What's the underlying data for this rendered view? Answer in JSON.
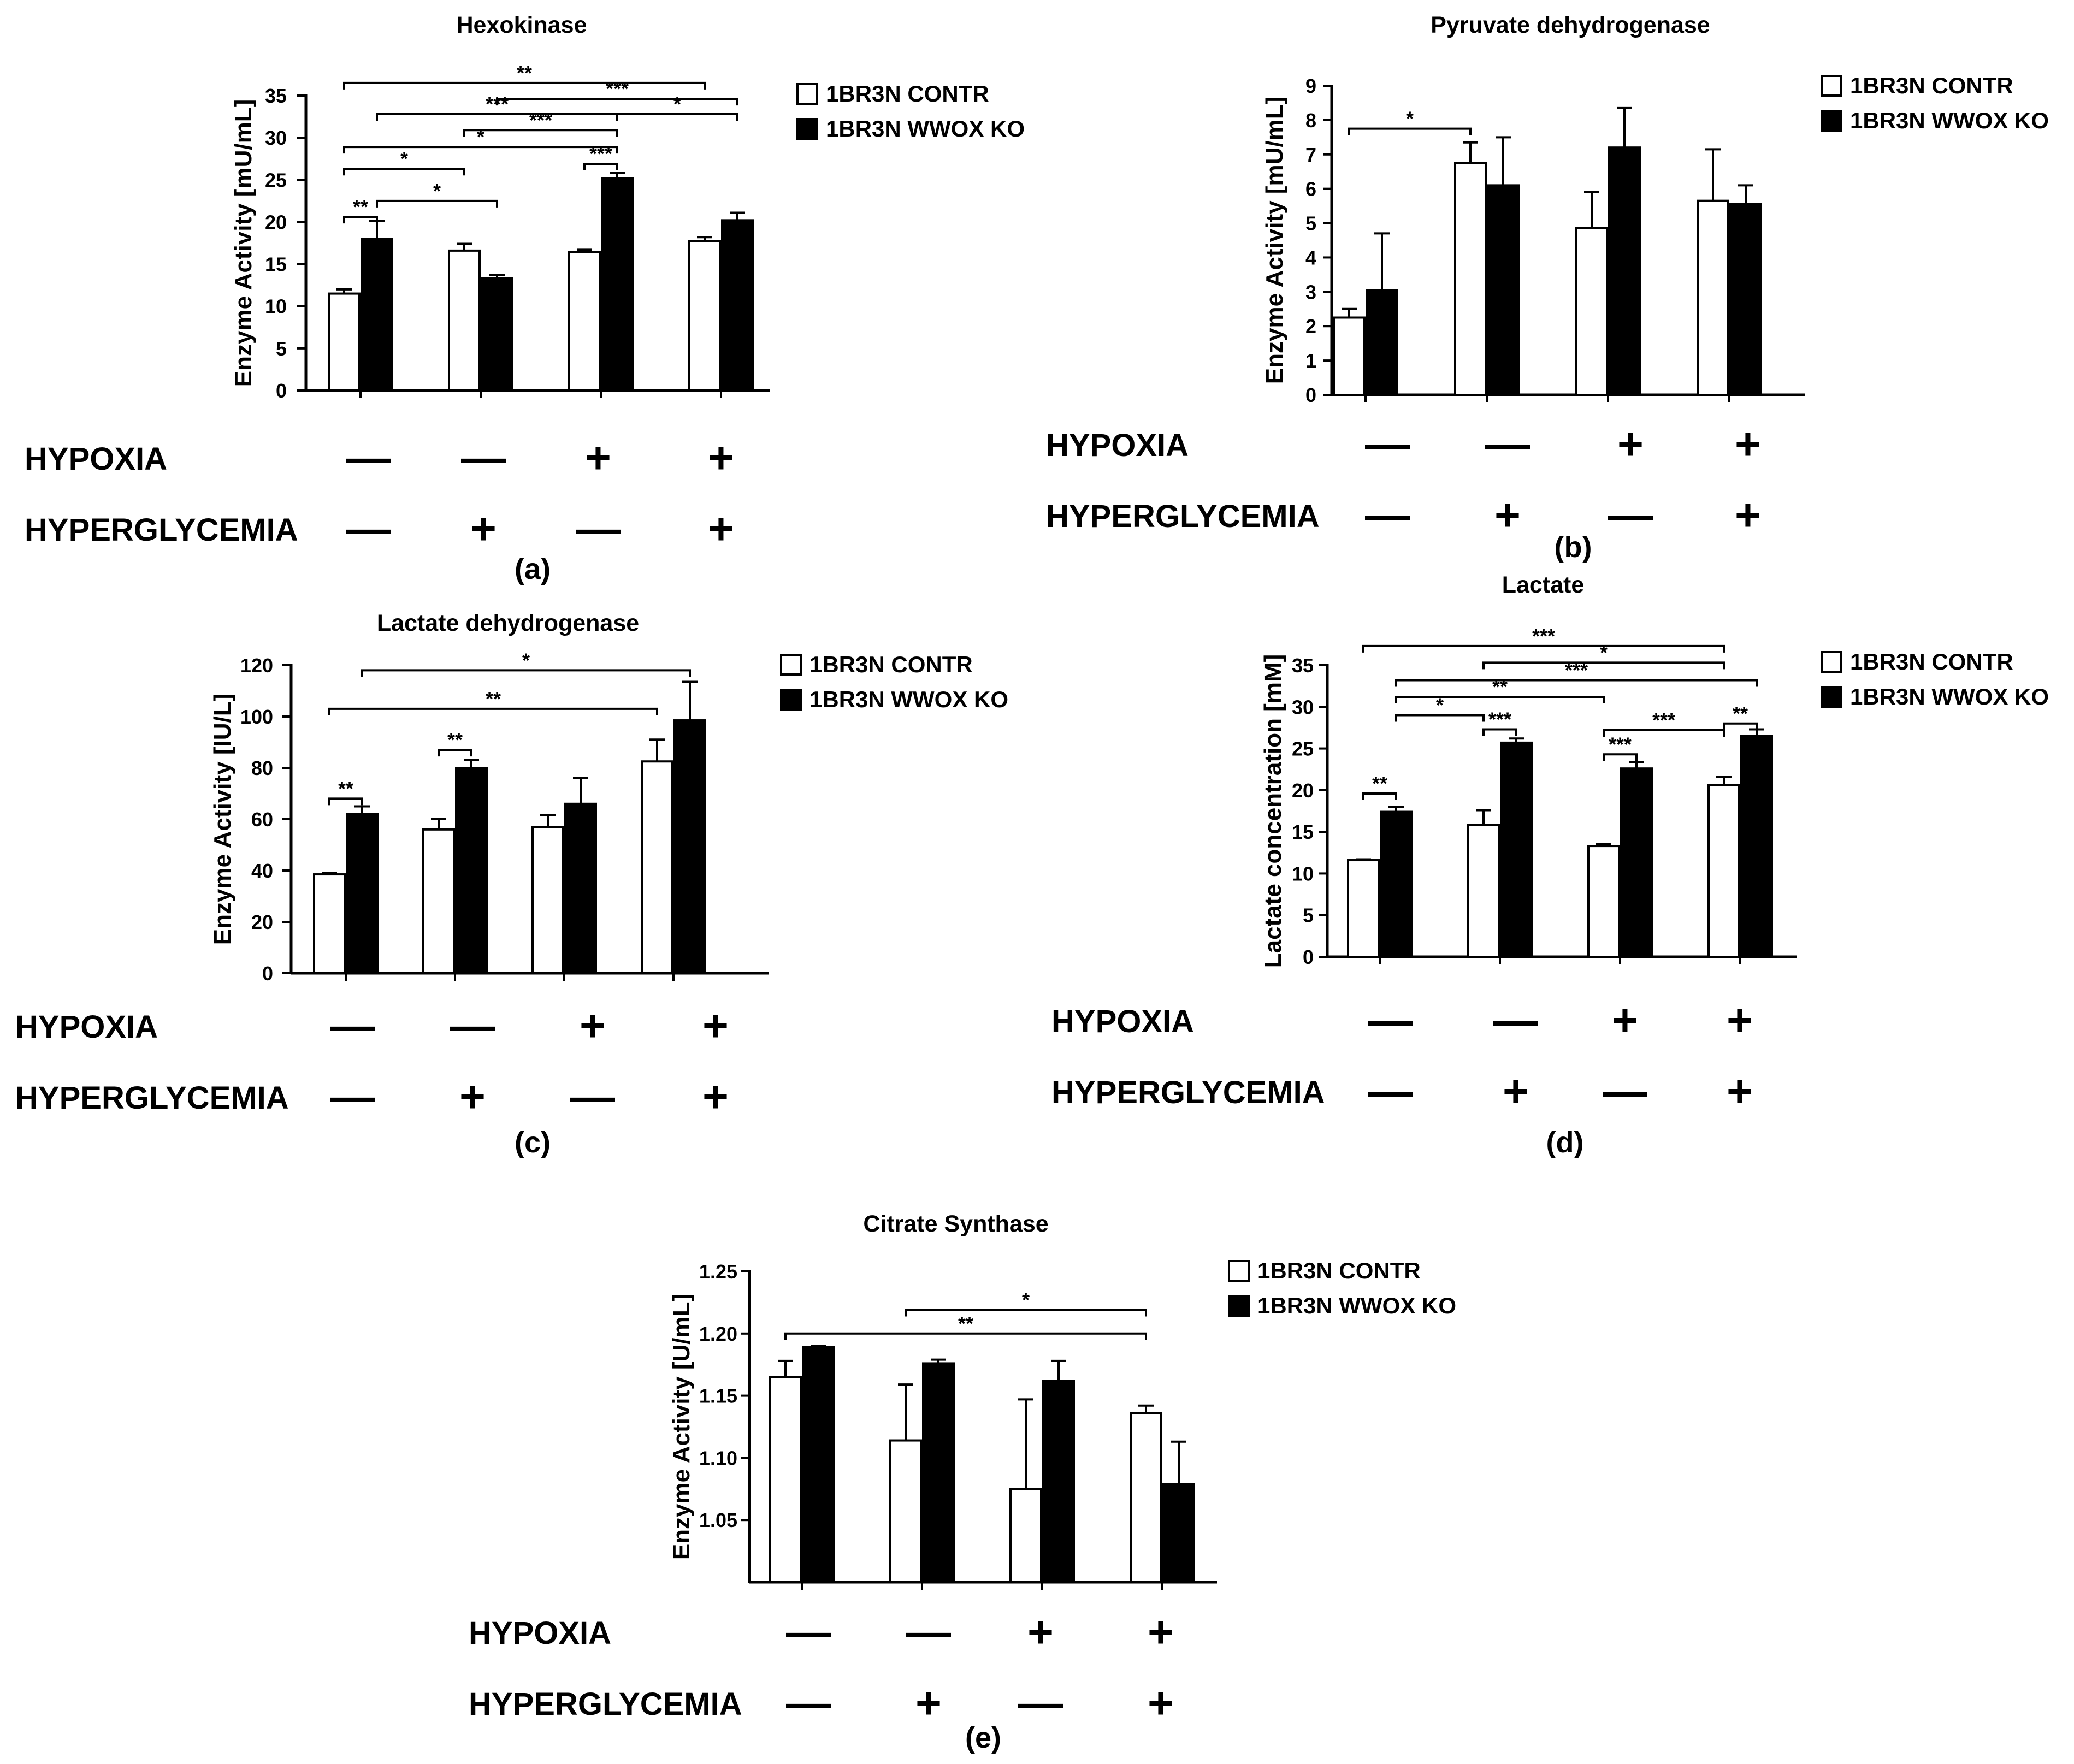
{
  "figure": {
    "legend": [
      "1BR3N CONTR",
      "1BR3N WWOX KO"
    ],
    "condition_labels": [
      "HYPOXIA",
      "HYPERGLYCEMIA"
    ],
    "hypoxia_signs": [
      "—",
      "—",
      "+",
      "+"
    ],
    "hyperglycemia_signs": [
      "—",
      "+",
      "—",
      "+"
    ],
    "colors": {
      "contr": "#ffffff",
      "ko": "#000000",
      "stroke": "#000000"
    }
  },
  "chart_data": [
    {
      "type": "bar",
      "panel": "(a)",
      "title": "Hexokinase",
      "ylabel": "Enzyme Activity [mU/mL]",
      "ylim": [
        0,
        35
      ],
      "yticks": [
        0,
        5,
        10,
        15,
        20,
        25,
        30,
        35
      ],
      "ytick_labels": [
        "0",
        "5",
        "10",
        "15",
        "20",
        "25",
        "30",
        "35"
      ],
      "categories": [
        "HYPOXIA — / HYPERGLYCEMIA —",
        "HYPOXIA — / HYPERGLYCEMIA +",
        "HYPOXIA + / HYPERGLYCEMIA —",
        "HYPOXIA + / HYPERGLYCEMIA +"
      ],
      "series": [
        {
          "name": "1BR3N CONTR",
          "values": [
            11.5,
            16.6,
            16.4,
            17.7
          ],
          "errors": [
            0.5,
            0.8,
            0.3,
            0.5
          ]
        },
        {
          "name": "1BR3N WWOX KO",
          "values": [
            18.0,
            13.3,
            25.2,
            20.2
          ],
          "errors": [
            2.1,
            0.4,
            0.6,
            0.9
          ]
        }
      ],
      "significance": [
        {
          "from": [
            0,
            0
          ],
          "to": [
            3,
            0
          ],
          "label": "**",
          "y": 36.5
        },
        {
          "from": [
            1,
            1
          ],
          "to": [
            3,
            1
          ],
          "label": "***",
          "y": 34.6
        },
        {
          "from": [
            0,
            1
          ],
          "to": [
            2,
            1
          ],
          "label": "***",
          "y": 32.8
        },
        {
          "from": [
            2,
            1
          ],
          "to": [
            3,
            1
          ],
          "label": "*",
          "y": 32.8
        },
        {
          "from": [
            1,
            0
          ],
          "to": [
            2,
            1
          ],
          "label": "***",
          "y": 30.9
        },
        {
          "from": [
            0,
            0
          ],
          "to": [
            2,
            1
          ],
          "label": "*",
          "y": 28.9
        },
        {
          "from": [
            2,
            0
          ],
          "to": [
            2,
            1
          ],
          "label": "***",
          "y": 26.9
        },
        {
          "from": [
            0,
            0
          ],
          "to": [
            1,
            0
          ],
          "label": "*",
          "y": 26.3
        },
        {
          "from": [
            0,
            1
          ],
          "to": [
            1,
            1
          ],
          "label": "*",
          "y": 22.5
        },
        {
          "from": [
            0,
            0
          ],
          "to": [
            0,
            1
          ],
          "label": "**",
          "y": 20.6
        }
      ]
    },
    {
      "type": "bar",
      "panel": "(b)",
      "title": "Pyruvate dehydrogenase",
      "ylabel": "Enzyme Activity [mU/mL]",
      "ylim": [
        0,
        9
      ],
      "yticks": [
        0,
        1,
        2,
        3,
        4,
        5,
        6,
        7,
        8,
        9
      ],
      "ytick_labels": [
        "0",
        "1",
        "2",
        "3",
        "4",
        "5",
        "6",
        "7",
        "8",
        "9"
      ],
      "categories": [
        "HYPOXIA — / HYPERGLYCEMIA —",
        "HYPOXIA — / HYPERGLYCEMIA +",
        "HYPOXIA + / HYPERGLYCEMIA —",
        "HYPOXIA + / HYPERGLYCEMIA +"
      ],
      "series": [
        {
          "name": "1BR3N CONTR",
          "values": [
            2.25,
            6.75,
            4.85,
            5.65
          ],
          "errors": [
            0.25,
            0.6,
            1.05,
            1.5
          ]
        },
        {
          "name": "1BR3N WWOX KO",
          "values": [
            3.05,
            6.1,
            7.2,
            5.55
          ],
          "errors": [
            1.65,
            1.4,
            1.15,
            0.55
          ]
        }
      ],
      "significance": [
        {
          "from": [
            0,
            0
          ],
          "to": [
            1,
            0
          ],
          "label": "*",
          "y": 7.75
        }
      ]
    },
    {
      "type": "bar",
      "panel": "(c)",
      "title": "Lactate dehydrogenase",
      "ylabel": "Enzyme Activity [IU/L]",
      "ylim": [
        0,
        120
      ],
      "yticks": [
        0,
        20,
        40,
        60,
        80,
        100,
        120
      ],
      "ytick_labels": [
        "0",
        "20",
        "40",
        "60",
        "80",
        "100",
        "120"
      ],
      "categories": [
        "HYPOXIA — / HYPERGLYCEMIA —",
        "HYPOXIA — / HYPERGLYCEMIA +",
        "HYPOXIA + / HYPERGLYCEMIA —",
        "HYPOXIA + / HYPERGLYCEMIA +"
      ],
      "series": [
        {
          "name": "1BR3N CONTR",
          "values": [
            38.5,
            56,
            57,
            82.5
          ],
          "errors": [
            0.5,
            4,
            4.5,
            8.5
          ]
        },
        {
          "name": "1BR3N WWOX KO",
          "values": [
            62,
            80,
            66,
            98.5
          ],
          "errors": [
            3,
            3,
            10,
            15
          ]
        }
      ],
      "significance": [
        {
          "from": [
            0,
            1
          ],
          "to": [
            3,
            1
          ],
          "label": "*",
          "y": 118
        },
        {
          "from": [
            0,
            0
          ],
          "to": [
            3,
            0
          ],
          "label": "**",
          "y": 103
        },
        {
          "from": [
            1,
            0
          ],
          "to": [
            1,
            1
          ],
          "label": "**",
          "y": 87
        },
        {
          "from": [
            0,
            0
          ],
          "to": [
            0,
            1
          ],
          "label": "**",
          "y": 68
        }
      ]
    },
    {
      "type": "bar",
      "panel": "(d)",
      "title": "Lactate",
      "ylabel": "Lactate concentration [mM]",
      "ylim": [
        0,
        35
      ],
      "yticks": [
        0,
        5,
        10,
        15,
        20,
        25,
        30,
        35
      ],
      "ytick_labels": [
        "0",
        "5",
        "10",
        "15",
        "20",
        "25",
        "30",
        "35"
      ],
      "categories": [
        "HYPOXIA — / HYPERGLYCEMIA —",
        "HYPOXIA — / HYPERGLYCEMIA +",
        "HYPOXIA + / HYPERGLYCEMIA —",
        "HYPOXIA + / HYPERGLYCEMIA +"
      ],
      "series": [
        {
          "name": "1BR3N CONTR",
          "values": [
            11.6,
            15.8,
            13.3,
            20.6
          ],
          "errors": [
            0.1,
            1.8,
            0.2,
            1.0
          ]
        },
        {
          "name": "1BR3N WWOX KO",
          "values": [
            17.4,
            25.7,
            22.6,
            26.5
          ],
          "errors": [
            0.6,
            0.5,
            0.8,
            0.8
          ]
        }
      ],
      "significance": [
        {
          "from": [
            0,
            0
          ],
          "to": [
            3,
            0
          ],
          "label": "***",
          "y": 37.3
        },
        {
          "from": [
            1,
            0
          ],
          "to": [
            3,
            0
          ],
          "label": "*",
          "y": 35.3
        },
        {
          "from": [
            0,
            1
          ],
          "to": [
            3,
            1
          ],
          "label": "***",
          "y": 33.2
        },
        {
          "from": [
            0,
            1
          ],
          "to": [
            2,
            0
          ],
          "label": "**",
          "y": 31.2
        },
        {
          "from": [
            0,
            1
          ],
          "to": [
            1,
            0
          ],
          "label": "*",
          "y": 29.0
        },
        {
          "from": [
            1,
            0
          ],
          "to": [
            1,
            1
          ],
          "label": "***",
          "y": 27.3
        },
        {
          "from": [
            2,
            0
          ],
          "to": [
            3,
            0
          ],
          "label": "***",
          "y": 27.2
        },
        {
          "from": [
            3,
            0
          ],
          "to": [
            3,
            1
          ],
          "label": "**",
          "y": 28.0
        },
        {
          "from": [
            2,
            0
          ],
          "to": [
            2,
            1
          ],
          "label": "***",
          "y": 24.3
        },
        {
          "from": [
            0,
            0
          ],
          "to": [
            0,
            1
          ],
          "label": "**",
          "y": 19.6
        }
      ]
    },
    {
      "type": "bar",
      "panel": "(e)",
      "title": "Citrate Synthase",
      "ylabel": "Enzyme Activity [U/mL]",
      "ylim": [
        1.0,
        1.25
      ],
      "yticks": [
        1.05,
        1.1,
        1.15,
        1.2,
        1.25
      ],
      "ytick_labels": [
        "1.05",
        "1.10",
        "1.15",
        "1.20",
        "1.25"
      ],
      "categories": [
        "HYPOXIA — / HYPERGLYCEMIA —",
        "HYPOXIA — / HYPERGLYCEMIA +",
        "HYPOXIA + / HYPERGLYCEMIA —",
        "HYPOXIA + / HYPERGLYCEMIA +"
      ],
      "series": [
        {
          "name": "1BR3N CONTR",
          "values": [
            1.165,
            1.114,
            1.075,
            1.136
          ],
          "errors": [
            0.013,
            0.045,
            0.072,
            0.006
          ]
        },
        {
          "name": "1BR3N WWOX KO",
          "values": [
            1.189,
            1.176,
            1.162,
            1.079
          ],
          "errors": [
            0.001,
            0.003,
            0.016,
            0.034
          ]
        }
      ],
      "significance": [
        {
          "from": [
            1,
            0
          ],
          "to": [
            3,
            0
          ],
          "label": "*",
          "y": 1.219
        },
        {
          "from": [
            0,
            0
          ],
          "to": [
            3,
            0
          ],
          "label": "**",
          "y": 1.2
        }
      ]
    }
  ]
}
